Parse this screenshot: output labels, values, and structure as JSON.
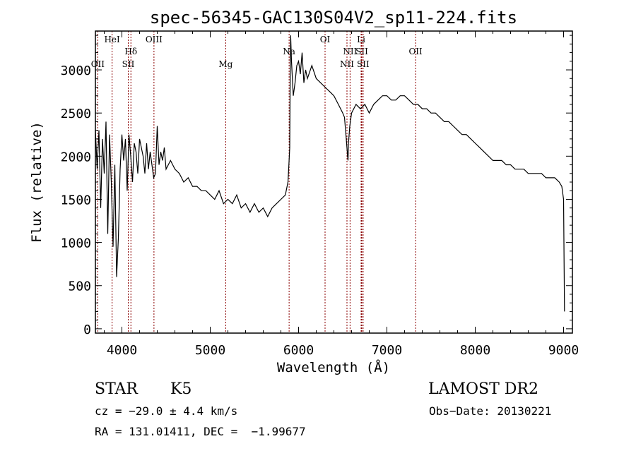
{
  "chart_data": {
    "type": "line",
    "title": "spec-56345-GAC130S04V2_sp11-224.fits",
    "xlabel": "Wavelength (Å)",
    "ylabel": "Flux (relative)",
    "xlim": [
      3700,
      9100
    ],
    "ylim": [
      -50,
      3450
    ],
    "xticks": [
      4000,
      5000,
      6000,
      7000,
      8000,
      9000
    ],
    "yticks": [
      0,
      500,
      1000,
      1500,
      2000,
      2500,
      3000
    ],
    "grid": false,
    "line_color": "#000000",
    "marker_color": "#8b0000",
    "series": [
      {
        "x": [
          3700,
          3720,
          3740,
          3760,
          3780,
          3800,
          3820,
          3840,
          3860,
          3880,
          3900,
          3920,
          3940,
          3960,
          3980,
          4000,
          4020,
          4040,
          4060,
          4080,
          4100,
          4120,
          4140,
          4160,
          4180,
          4200,
          4220,
          4240,
          4260,
          4280,
          4300,
          4320,
          4340,
          4360,
          4380,
          4400,
          4420,
          4440,
          4460,
          4480,
          4500,
          4550,
          4600,
          4650,
          4700,
          4750,
          4800,
          4850,
          4900,
          4950,
          5000,
          5050,
          5100,
          5150,
          5200,
          5250,
          5300,
          5350,
          5400,
          5450,
          5500,
          5550,
          5600,
          5650,
          5700,
          5750,
          5800,
          5850,
          5880,
          5890,
          5900,
          5905,
          5910,
          5920,
          5940,
          5960,
          5980,
          6000,
          6020,
          6040,
          6060,
          6080,
          6100,
          6150,
          6200,
          6250,
          6300,
          6350,
          6400,
          6450,
          6500,
          6520,
          6540,
          6555,
          6560,
          6565,
          6580,
          6600,
          6650,
          6700,
          6750,
          6800,
          6850,
          6900,
          6950,
          7000,
          7050,
          7100,
          7150,
          7200,
          7250,
          7300,
          7350,
          7400,
          7450,
          7500,
          7550,
          7600,
          7650,
          7700,
          7750,
          7800,
          7850,
          7900,
          7950,
          8000,
          8050,
          8100,
          8150,
          8200,
          8250,
          8300,
          8350,
          8400,
          8450,
          8500,
          8550,
          8600,
          8650,
          8700,
          8750,
          8800,
          8850,
          8900,
          8950,
          8980,
          9000,
          9010
        ],
        "y": [
          2300,
          1850,
          2300,
          1400,
          2200,
          1800,
          2400,
          1100,
          2250,
          1700,
          950,
          1900,
          600,
          1050,
          1850,
          2250,
          1950,
          2200,
          1600,
          2250,
          2000,
          1700,
          2150,
          2050,
          1800,
          2200,
          2100,
          2000,
          1800,
          2150,
          1850,
          2050,
          1900,
          1750,
          1800,
          2350,
          1900,
          2050,
          1950,
          2100,
          1850,
          1950,
          1850,
          1800,
          1700,
          1750,
          1650,
          1650,
          1600,
          1600,
          1550,
          1500,
          1600,
          1450,
          1500,
          1450,
          1550,
          1400,
          1450,
          1350,
          1450,
          1350,
          1400,
          1300,
          1400,
          1450,
          1500,
          1550,
          1700,
          1900,
          2100,
          2900,
          3400,
          3100,
          2700,
          2850,
          3050,
          3100,
          2950,
          3200,
          2850,
          3000,
          2900,
          3050,
          2900,
          2850,
          2800,
          2750,
          2700,
          2600,
          2500,
          2450,
          2200,
          2000,
          1950,
          2150,
          2350,
          2500,
          2600,
          2550,
          2600,
          2500,
          2600,
          2650,
          2700,
          2700,
          2650,
          2650,
          2700,
          2700,
          2650,
          2600,
          2600,
          2550,
          2550,
          2500,
          2500,
          2450,
          2400,
          2400,
          2350,
          2300,
          2250,
          2250,
          2200,
          2150,
          2100,
          2050,
          2000,
          1950,
          1950,
          1950,
          1900,
          1900,
          1850,
          1850,
          1850,
          1800,
          1800,
          1800,
          1800,
          1750,
          1750,
          1750,
          1700,
          1650,
          1500,
          200
        ]
      }
    ],
    "line_markers": [
      {
        "label": "OII",
        "x": 3727,
        "row": 2
      },
      {
        "label": "HeI",
        "x": 3889,
        "row": 0
      },
      {
        "label": "Hδ",
        "x": 4102,
        "row": 1
      },
      {
        "label": "SII",
        "x": 4072,
        "row": 2
      },
      {
        "label": "OIII",
        "x": 4363,
        "row": 0
      },
      {
        "label": "Mg",
        "x": 5175,
        "row": 2
      },
      {
        "label": "Na",
        "x": 5893,
        "row": 1
      },
      {
        "label": "OI",
        "x": 6300,
        "row": 0
      },
      {
        "label": "NII",
        "x": 6583,
        "row": 1
      },
      {
        "label": "NII",
        "x": 6548,
        "row": 2
      },
      {
        "label": "Li",
        "x": 6708,
        "row": 0
      },
      {
        "label": "SII",
        "x": 6716,
        "row": 1
      },
      {
        "label": "SII",
        "x": 6731,
        "row": 2
      },
      {
        "label": "OII",
        "x": 7325,
        "row": 1
      }
    ]
  },
  "info": {
    "class_label": "STAR",
    "subclass_label": "K5",
    "survey": "LAMOST DR2",
    "cz": "cz = −29.0 ± 4.4 km/s",
    "obs_date": "Obs−Date: 20130221",
    "coords": "RA = 131.01411, DEC =  −1.99677"
  }
}
